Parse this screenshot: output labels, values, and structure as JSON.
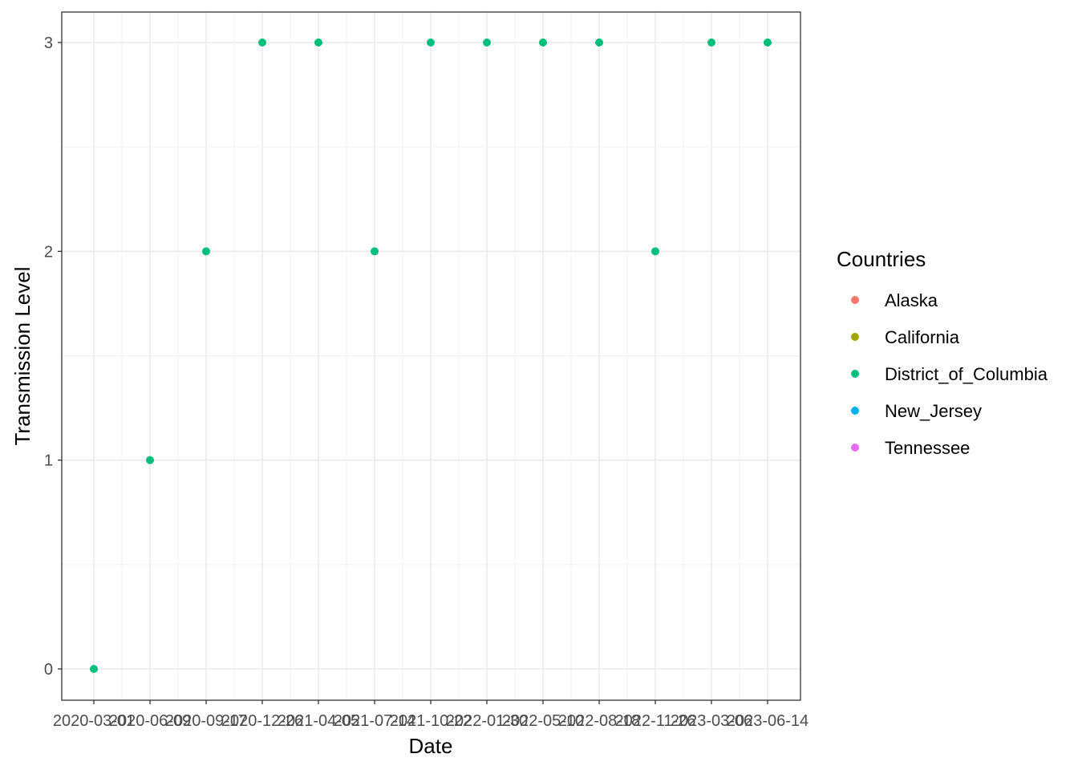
{
  "chart_data": {
    "type": "scatter",
    "title": "",
    "xlabel": "Date",
    "ylabel": "Transmission Level",
    "x_tick_labels": [
      "2020-03-01",
      "2020-06-09",
      "2020-09-17",
      "2020-12-26",
      "2021-04-05",
      "2021-07-14",
      "2021-10-22",
      "2022-01-30",
      "2022-05-10",
      "2022-08-18",
      "2022-11-26",
      "2023-03-06",
      "2023-06-14"
    ],
    "y_ticks": [
      0,
      1,
      2,
      3
    ],
    "ylim": [
      0,
      3
    ],
    "grid": true,
    "legend": {
      "title": "Countries",
      "placement": "right",
      "entries": [
        {
          "name": "Alaska",
          "color": "#F8766D"
        },
        {
          "name": "California",
          "color": "#A3A500"
        },
        {
          "name": "District_of_Columbia",
          "color": "#00BF7D"
        },
        {
          "name": "New_Jersey",
          "color": "#00B0F6"
        },
        {
          "name": "Tennessee",
          "color": "#E76BF3"
        }
      ]
    },
    "series": [
      {
        "name": "District_of_Columbia",
        "color": "#00BF7D",
        "points": [
          {
            "x": "2020-03-01",
            "y": 0
          },
          {
            "x": "2020-06-09",
            "y": 1
          },
          {
            "x": "2020-09-17",
            "y": 2
          },
          {
            "x": "2020-12-26",
            "y": 3
          },
          {
            "x": "2021-04-05",
            "y": 3
          },
          {
            "x": "2021-07-14",
            "y": 2
          },
          {
            "x": "2021-10-22",
            "y": 3
          },
          {
            "x": "2022-01-30",
            "y": 3
          },
          {
            "x": "2022-05-10",
            "y": 3
          },
          {
            "x": "2022-08-18",
            "y": 3
          },
          {
            "x": "2022-11-26",
            "y": 2
          },
          {
            "x": "2023-03-06",
            "y": 3
          },
          {
            "x": "2023-06-14",
            "y": 3
          }
        ]
      }
    ]
  }
}
